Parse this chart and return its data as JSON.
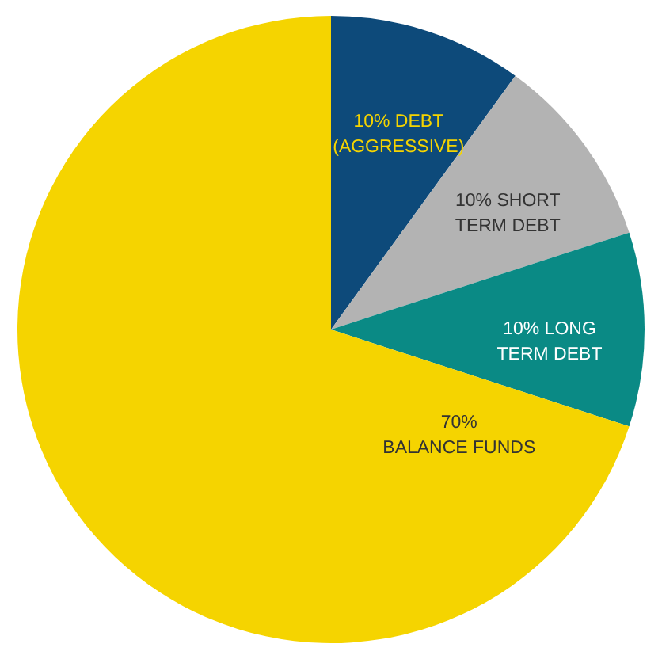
{
  "chart_data": {
    "type": "pie",
    "categories": [
      "DEBT (AGGRESSIVE)",
      "SHORT TERM DEBT",
      "LONG TERM DEBT",
      "BALANCE FUNDS"
    ],
    "values": [
      10,
      10,
      10,
      70
    ],
    "value_labels": [
      "10%",
      "10%",
      "10%",
      "70%"
    ],
    "colors": [
      "#0d4a7a",
      "#b3b3b3",
      "#0a8a85",
      "#f5d400"
    ]
  }
}
